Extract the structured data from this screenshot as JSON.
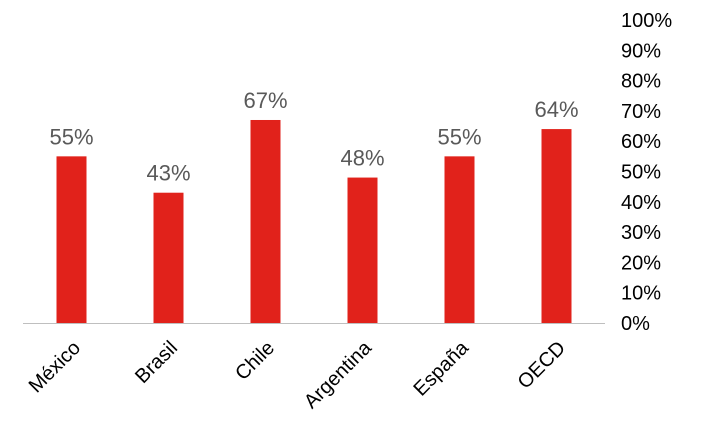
{
  "chart_data": {
    "type": "bar",
    "categories": [
      "México",
      "Brasil",
      "Chile",
      "Argentina",
      "España",
      "OECD"
    ],
    "series": [
      {
        "values": [
          55,
          43,
          67,
          48,
          55,
          64
        ]
      }
    ],
    "data_labels": [
      "55%",
      "43%",
      "67%",
      "48%",
      "55%",
      "64%"
    ],
    "y_ticks": [
      "0%",
      "10%",
      "20%",
      "30%",
      "40%",
      "50%",
      "60%",
      "70%",
      "80%",
      "90%",
      "100%"
    ],
    "ylim": [
      0,
      100
    ],
    "y_axis_side": "right",
    "grid": false,
    "legend": false,
    "title": "",
    "xlabel": "",
    "ylabel": "",
    "colors": {
      "bar": "#E1221B",
      "data_label": "#595959",
      "axis": "#BFBFBF",
      "text": "#000000"
    }
  }
}
